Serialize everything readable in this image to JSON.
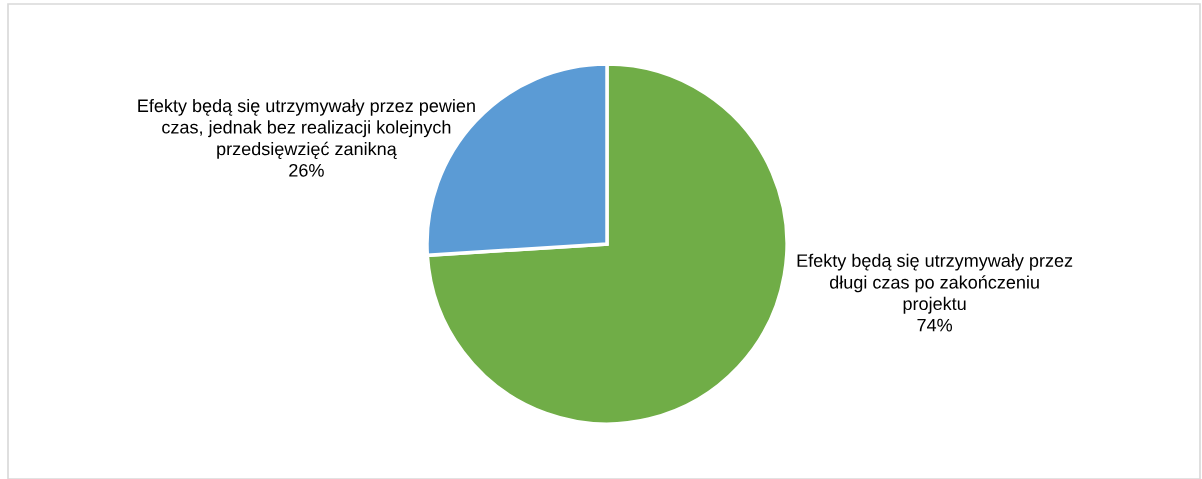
{
  "chart_data": {
    "type": "pie",
    "categories": [
      "Efekty będą się utrzymywały przez długi czas po zakończeniu projektu",
      "Efekty będą się utrzymywały przez pewien czas, jednak bez realizacji kolejnych przedsięwzięć zanikną"
    ],
    "values": [
      74,
      26
    ],
    "colors": [
      "#70ad47",
      "#5b9bd5"
    ],
    "value_labels": [
      "74%",
      "26%"
    ],
    "legend": false
  }
}
